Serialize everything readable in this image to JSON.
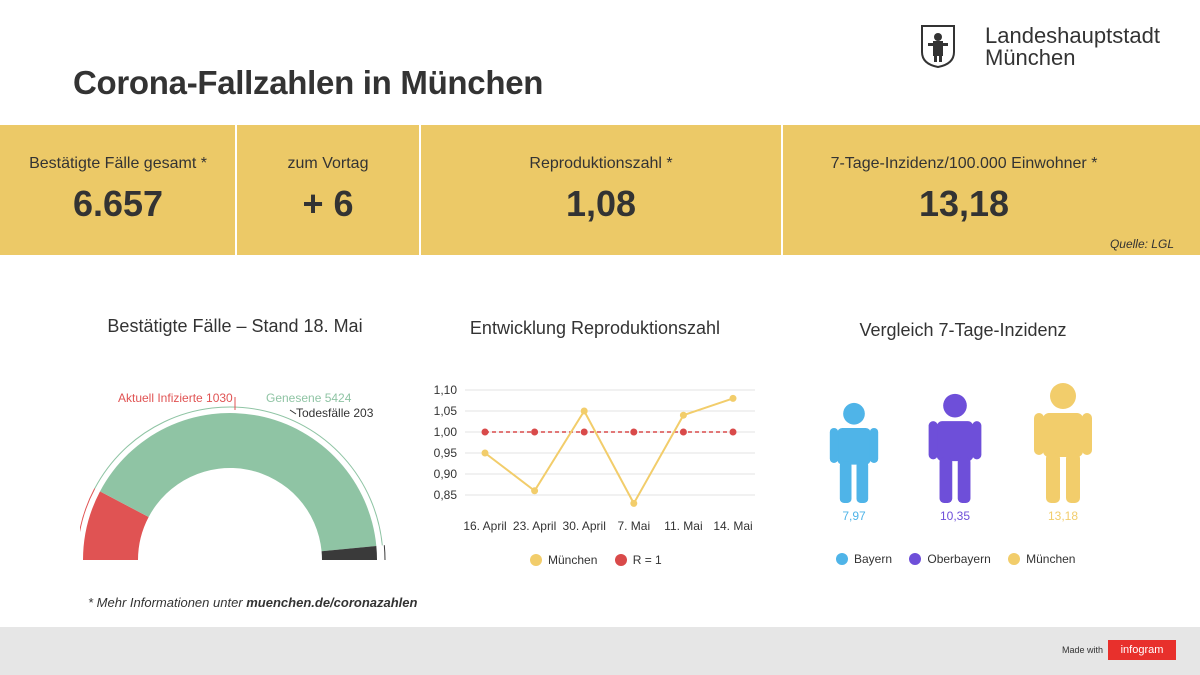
{
  "header": {
    "title": "Corona-Fallzahlen in München",
    "logo_line1": "Landeshauptstadt",
    "logo_line2": "München"
  },
  "kpis": [
    {
      "label": "Bestätigte Fälle gesamt *",
      "value": "6.657"
    },
    {
      "label": "zum Vortag",
      "value": "+ 6"
    },
    {
      "label": "Reproduktionszahl *",
      "value": "1,08"
    },
    {
      "label": "7-Tage-Inzidenz/100.000 Einwohner *",
      "value": "13,18"
    }
  ],
  "source": "Quelle: LGL",
  "colors": {
    "band": "#ecc967",
    "infected": "#e05353",
    "recovered": "#8fc4a4",
    "deaths": "#3a3a3a",
    "muenchen": "#f2cd6b",
    "r1": "#d94a4a",
    "bayern": "#4fb4e8",
    "oberbayern": "#6e4fd9"
  },
  "chart_data": [
    {
      "type": "pie",
      "title": "Bestätigte Fälle – Stand 18. Mai",
      "categories": [
        "Aktuell Infizierte",
        "Genesene",
        "Todesfälle"
      ],
      "values": [
        1030,
        5424,
        203
      ],
      "labels": [
        "Aktuell Infizierte 1030",
        "Genesene 5424",
        "Todesfälle 203"
      ]
    },
    {
      "type": "line",
      "title": "Entwicklung Reproduktionszahl",
      "x": [
        "16. April",
        "23. April",
        "30. April",
        "7. Mai",
        "11. Mai",
        "14. Mai"
      ],
      "x_ticks": [
        "16. April",
        "23. April",
        "30. April",
        "7. Mai",
        "11. Mai",
        "14. Mai"
      ],
      "y_ticks": [
        "0,85",
        "0,90",
        "0,95",
        "1,00",
        "1,05",
        "1,10"
      ],
      "ylim": [
        0.85,
        1.1
      ],
      "grid": true,
      "legend_position": "bottom",
      "series": [
        {
          "name": "München",
          "values": [
            0.95,
            0.86,
            1.05,
            0.83,
            1.04,
            1.08
          ]
        },
        {
          "name": "R = 1",
          "values": [
            1.0,
            1.0,
            1.0,
            1.0,
            1.0,
            1.0
          ]
        }
      ]
    },
    {
      "type": "bar",
      "title": "Vergleich 7-Tage-Inzidenz",
      "categories": [
        "Bayern",
        "Oberbayern",
        "München"
      ],
      "values": [
        7.97,
        10.35,
        13.18
      ],
      "value_labels": [
        "7,97",
        "10,35",
        "13,18"
      ],
      "legend_position": "bottom"
    }
  ],
  "footnote": {
    "prefix": "* Mehr Informationen unter ",
    "link": "muenchen.de/coronazahlen"
  },
  "footer": {
    "made_with": "Made with",
    "brand": "infogram"
  }
}
